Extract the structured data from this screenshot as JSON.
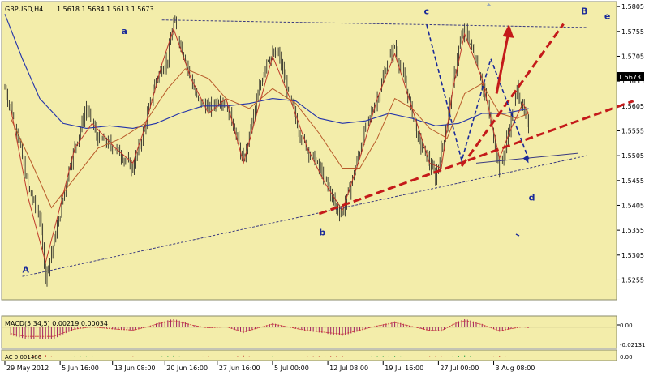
{
  "chart_data": {
    "type": "candlestick",
    "symbol": "GBPUSD,H4",
    "ohlc_header": "1.5618 1.5684 1.5613 1.5673",
    "price_axis": {
      "min": 1.5215,
      "max": 1.5815,
      "ticks": [
        "1.5805",
        "1.5755",
        "1.5705",
        "1.5655",
        "1.5605",
        "1.5555",
        "1.5505",
        "1.5455",
        "1.5405",
        "1.5355",
        "1.5305",
        "1.5255"
      ],
      "current_price": "1.5673"
    },
    "time_axis": {
      "ticks": [
        "29 May 2012",
        "5 Jun 16:00",
        "13 Jun 08:00",
        "20 Jun 16:00",
        "27 Jun 16:00",
        "5 Jul 00:00",
        "12 Jul 08:00",
        "19 Jul 16:00",
        "27 Jul 00:00",
        "3 Aug 08:00"
      ]
    },
    "close_path": [
      [
        0,
        1.564
      ],
      [
        2,
        1.556
      ],
      [
        4,
        1.544
      ],
      [
        6,
        1.538
      ],
      [
        7,
        1.5262
      ],
      [
        9,
        1.536
      ],
      [
        11,
        1.548
      ],
      [
        14,
        1.56
      ],
      [
        16,
        1.554
      ],
      [
        19,
        1.552
      ],
      [
        22,
        1.548
      ],
      [
        24,
        1.556
      ],
      [
        26,
        1.566
      ],
      [
        28,
        1.57
      ],
      [
        29,
        1.5775
      ],
      [
        31,
        1.57
      ],
      [
        33,
        1.562
      ],
      [
        35,
        1.56
      ],
      [
        37,
        1.562
      ],
      [
        39,
        1.558
      ],
      [
        41,
        1.549
      ],
      [
        43,
        1.56
      ],
      [
        45,
        1.57
      ],
      [
        47,
        1.571
      ],
      [
        49,
        1.562
      ],
      [
        51,
        1.554
      ],
      [
        53,
        1.55
      ],
      [
        55,
        1.546
      ],
      [
        57,
        1.54
      ],
      [
        58,
        1.539
      ],
      [
        60,
        1.547
      ],
      [
        62,
        1.556
      ],
      [
        64,
        1.562
      ],
      [
        66,
        1.57
      ],
      [
        67,
        1.5725
      ],
      [
        69,
        1.564
      ],
      [
        71,
        1.554
      ],
      [
        73,
        1.549
      ],
      [
        74,
        1.546
      ],
      [
        76,
        1.557
      ],
      [
        78,
        1.572
      ],
      [
        79,
        1.576
      ],
      [
        81,
        1.57
      ],
      [
        83,
        1.56
      ],
      [
        85,
        1.548
      ],
      [
        86,
        1.552
      ],
      [
        88,
        1.564
      ],
      [
        89,
        1.56
      ],
      [
        90,
        1.556
      ]
    ],
    "fast_ma": [
      [
        1,
        1.56
      ],
      [
        4,
        1.542
      ],
      [
        7,
        1.529
      ],
      [
        9,
        1.538
      ],
      [
        12,
        1.552
      ],
      [
        15,
        1.557
      ],
      [
        19,
        1.552
      ],
      [
        22,
        1.549
      ],
      [
        24,
        1.556
      ],
      [
        27,
        1.569
      ],
      [
        29,
        1.576
      ],
      [
        32,
        1.566
      ],
      [
        35,
        1.559
      ],
      [
        38,
        1.562
      ],
      [
        41,
        1.549
      ],
      [
        44,
        1.562
      ],
      [
        46,
        1.5705
      ],
      [
        49,
        1.562
      ],
      [
        52,
        1.552
      ],
      [
        55,
        1.545
      ],
      [
        58,
        1.5395
      ],
      [
        61,
        1.55
      ],
      [
        64,
        1.562
      ],
      [
        67,
        1.571
      ],
      [
        70,
        1.56
      ],
      [
        73,
        1.549
      ],
      [
        75,
        1.548
      ],
      [
        77,
        1.564
      ],
      [
        79,
        1.575
      ],
      [
        82,
        1.566
      ],
      [
        85,
        1.55
      ],
      [
        87,
        1.556
      ],
      [
        89,
        1.561
      ],
      [
        90,
        1.559
      ]
    ],
    "slow_ma": [
      [
        1,
        1.558
      ],
      [
        5,
        1.548
      ],
      [
        8,
        1.54
      ],
      [
        12,
        1.546
      ],
      [
        16,
        1.552
      ],
      [
        20,
        1.554
      ],
      [
        24,
        1.557
      ],
      [
        28,
        1.564
      ],
      [
        31,
        1.568
      ],
      [
        35,
        1.566
      ],
      [
        38,
        1.562
      ],
      [
        42,
        1.56
      ],
      [
        46,
        1.564
      ],
      [
        50,
        1.561
      ],
      [
        54,
        1.555
      ],
      [
        58,
        1.548
      ],
      [
        61,
        1.548
      ],
      [
        64,
        1.554
      ],
      [
        67,
        1.562
      ],
      [
        70,
        1.56
      ],
      [
        73,
        1.556
      ],
      [
        76,
        1.554
      ],
      [
        79,
        1.563
      ],
      [
        82,
        1.565
      ],
      [
        85,
        1.559
      ],
      [
        88,
        1.558
      ],
      [
        90,
        1.559
      ]
    ],
    "long_ma": [
      [
        0,
        1.579
      ],
      [
        3,
        1.57
      ],
      [
        6,
        1.562
      ],
      [
        10,
        1.557
      ],
      [
        14,
        1.556
      ],
      [
        18,
        1.5565
      ],
      [
        22,
        1.556
      ],
      [
        26,
        1.557
      ],
      [
        30,
        1.559
      ],
      [
        34,
        1.5605
      ],
      [
        38,
        1.5605
      ],
      [
        42,
        1.561
      ],
      [
        46,
        1.562
      ],
      [
        50,
        1.5615
      ],
      [
        54,
        1.558
      ],
      [
        58,
        1.557
      ],
      [
        62,
        1.5575
      ],
      [
        66,
        1.559
      ],
      [
        70,
        1.558
      ],
      [
        74,
        1.5565
      ],
      [
        78,
        1.557
      ],
      [
        82,
        1.559
      ],
      [
        86,
        1.559
      ],
      [
        90,
        1.56
      ]
    ],
    "wave_labels": [
      {
        "text": "A",
        "x": 3,
        "price": 1.527
      },
      {
        "text": "a",
        "x": 20,
        "price": 1.575
      },
      {
        "text": "b",
        "x": 54,
        "price": 1.5345
      },
      {
        "text": "c",
        "x": 72,
        "price": 1.579
      },
      {
        "text": "d",
        "x": 90,
        "price": 1.5415
      },
      {
        "text": "B",
        "x": 99,
        "price": 1.579
      },
      {
        "text": "e",
        "x": 103,
        "price": 1.578
      }
    ],
    "indicators": [
      {
        "label": "MACD(5,34,5) 0.00219 0.00034",
        "scale": [
          "0.00",
          "-0.02131"
        ]
      },
      {
        "label": "AC 0.001480",
        "scale": [
          "0.00"
        ]
      }
    ]
  }
}
